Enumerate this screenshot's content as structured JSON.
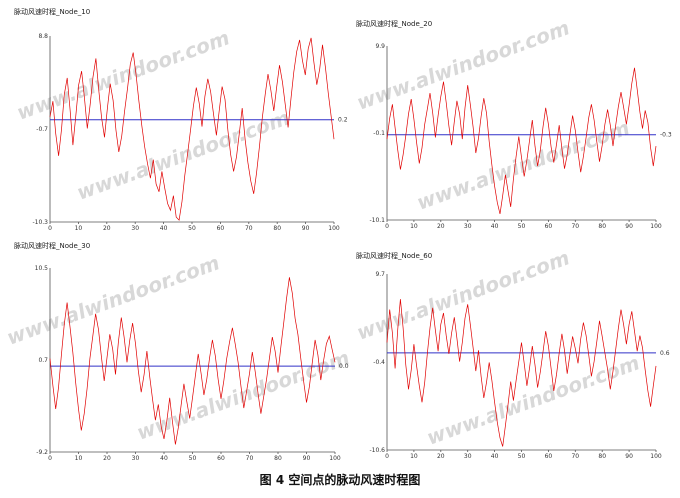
{
  "caption": "图 4 空间点的脉动风速时程图",
  "watermark": "www.alwindoor.com",
  "colors": {
    "series": "#e00000",
    "mean_line": "#3030c8",
    "axis": "#555555"
  },
  "chart_data": [
    {
      "type": "line",
      "title": "脉动风速时程_Node_10",
      "x_ticks": [
        0,
        10,
        20,
        30,
        40,
        50,
        60,
        70,
        80,
        90,
        100
      ],
      "y_tick_labels": [
        "8.8",
        "-0.7",
        "-10.3"
      ],
      "ylim": [
        -10.3,
        8.8
      ],
      "mean_value": 0.2,
      "mean_label": "0.2",
      "series": [
        {
          "values": [
            0.5,
            2.1,
            -1.2,
            -3.5,
            -0.8,
            2.8,
            4.5,
            1.2,
            -2.4,
            0.6,
            3.8,
            5.2,
            2.5,
            -0.7,
            1.8,
            4.6,
            6.5,
            3.2,
            0.4,
            -1.6,
            1.4,
            3.9,
            2.2,
            -0.9,
            -3.1,
            -1.5,
            1.1,
            3.4,
            5.9,
            7.1,
            4.8,
            2.1,
            -0.4,
            -2.6,
            -4.3,
            -5.8,
            -3.9,
            -6.4,
            -7.2,
            -5.1,
            -6.8,
            -8.4,
            -9.1,
            -7.6,
            -9.8,
            -10.1,
            -8.2,
            -5.5,
            -3.2,
            -0.8,
            1.6,
            3.5,
            1.9,
            -0.5,
            2.6,
            4.4,
            3.1,
            0.8,
            -1.4,
            1.2,
            3.6,
            2.3,
            -0.9,
            -3.4,
            -5.1,
            -3.6,
            -1.2,
            1.4,
            -1.8,
            -4.2,
            -6.1,
            -7.4,
            -5.3,
            -2.6,
            0.4,
            2.8,
            4.9,
            3.2,
            1.1,
            3.5,
            5.8,
            4.1,
            1.8,
            -0.6,
            2.4,
            5.1,
            7.2,
            8.4,
            6.3,
            4.8,
            7.5,
            8.6,
            6.1,
            3.8,
            5.4,
            7.9,
            5.6,
            2.9,
            0.6,
            -1.8
          ]
        }
      ]
    },
    {
      "type": "line",
      "title": "脉动风速时程_Node_20",
      "x_ticks": [
        0,
        10,
        20,
        30,
        40,
        50,
        60,
        70,
        80,
        90,
        100
      ],
      "y_tick_labels": [
        "9.9",
        "-0.1",
        "-10.1"
      ],
      "ylim": [
        -10.1,
        9.9
      ],
      "mean_value": -0.3,
      "mean_label": "-0.3",
      "series": [
        {
          "values": [
            -0.8,
            1.6,
            3.2,
            0.5,
            -2.1,
            -4.3,
            -2.6,
            -0.4,
            2.1,
            3.8,
            1.5,
            -1.2,
            -3.6,
            -1.8,
            0.9,
            2.7,
            4.5,
            2.2,
            -0.6,
            1.9,
            4.1,
            5.8,
            3.4,
            0.7,
            -1.5,
            1.2,
            3.6,
            2.1,
            -0.8,
            2.8,
            5.4,
            3.1,
            0.6,
            -2.4,
            -0.7,
            1.8,
            3.9,
            2.2,
            -1.1,
            -3.8,
            -6.2,
            -8.1,
            -9.4,
            -7.3,
            -4.9,
            -6.8,
            -8.6,
            -5.4,
            -2.8,
            -0.5,
            -2.9,
            -5.1,
            -3.2,
            -0.9,
            1.4,
            -1.6,
            -3.9,
            -2.1,
            0.6,
            2.8,
            0.9,
            -1.7,
            -3.5,
            -1.4,
            0.8,
            -1.9,
            -4.2,
            -2.6,
            -0.3,
            1.9,
            0.2,
            -2.3,
            -4.6,
            -2.8,
            -0.6,
            1.7,
            3.2,
            1.4,
            -1.1,
            -3.4,
            -1.5,
            0.9,
            2.6,
            0.8,
            -1.6,
            0.7,
            2.9,
            4.6,
            2.8,
            0.9,
            3.1,
            5.6,
            7.4,
            4.9,
            2.3,
            0.4,
            2.5,
            1.1,
            -1.8,
            -3.9,
            -1.6
          ]
        }
      ]
    },
    {
      "type": "line",
      "title": "脉动风速时程_Node_30",
      "x_ticks": [
        0,
        10,
        20,
        30,
        40,
        50,
        60,
        70,
        80,
        90,
        100
      ],
      "y_tick_labels": [
        "10.5",
        "0.7",
        "-9.2"
      ],
      "ylim": [
        -9.2,
        10.5
      ],
      "mean_value": 0.0,
      "mean_label": "0.0",
      "series": [
        {
          "values": [
            0.8,
            -2.1,
            -4.6,
            -2.3,
            1.2,
            4.5,
            6.8,
            4.2,
            1.5,
            -1.8,
            -4.6,
            -6.9,
            -5.1,
            -2.4,
            0.8,
            3.2,
            5.6,
            3.9,
            1.1,
            -1.6,
            0.9,
            3.4,
            1.8,
            -0.9,
            2.6,
            5.2,
            3.1,
            0.4,
            2.8,
            4.6,
            2.4,
            -0.5,
            -2.8,
            -0.9,
            1.6,
            -1.2,
            -3.6,
            -5.8,
            -4.1,
            -6.5,
            -7.8,
            -5.9,
            -3.4,
            -6.1,
            -8.4,
            -6.6,
            -4.2,
            -1.9,
            -3.8,
            -5.6,
            -3.4,
            -1.1,
            1.3,
            -0.8,
            -3.1,
            -1.4,
            0.9,
            2.8,
            1.1,
            -1.4,
            -3.5,
            -1.6,
            0.8,
            2.6,
            4.1,
            2.3,
            0.4,
            -2.2,
            -4.5,
            -2.7,
            -0.8,
            1.5,
            -0.6,
            -2.9,
            -5.1,
            -3.2,
            -1.4,
            0.9,
            3.1,
            1.6,
            -0.7,
            2.1,
            4.6,
            7.2,
            9.5,
            7.8,
            5.1,
            3.4,
            0.8,
            -1.6,
            -3.9,
            -2.2,
            0.3,
            2.8,
            1.2,
            -1.5,
            0.6,
            2.4,
            3.2,
            1.8,
            0.4
          ]
        }
      ]
    },
    {
      "type": "line",
      "title": "脉动风速时程_Node_60",
      "x_ticks": [
        0,
        10,
        20,
        30,
        40,
        50,
        60,
        70,
        80,
        90,
        100
      ],
      "y_tick_labels": [
        "9.7",
        "-0.4",
        "-10.6"
      ],
      "ylim": [
        -10.6,
        9.7
      ],
      "mean_value": 0.6,
      "mean_label": "0.6",
      "series": [
        {
          "values": [
            1.8,
            5.6,
            2.9,
            -1.2,
            3.4,
            6.8,
            3.5,
            -0.8,
            -3.6,
            -1.4,
            1.6,
            -0.9,
            -3.2,
            -5.1,
            -2.8,
            0.6,
            3.5,
            5.8,
            3.2,
            0.8,
            3.9,
            5.2,
            2.6,
            0.5,
            2.9,
            4.7,
            2.3,
            -0.4,
            1.8,
            4.6,
            6.2,
            3.8,
            1.2,
            -1.5,
            0.9,
            -2.1,
            -4.6,
            -2.8,
            -0.5,
            -2.6,
            -5.1,
            -7.4,
            -9.2,
            -10.2,
            -7.8,
            -5.3,
            -2.7,
            -4.9,
            -2.6,
            -0.4,
            1.8,
            -0.6,
            -3.2,
            -1.1,
            1.4,
            -0.8,
            -3.4,
            -1.6,
            0.7,
            3.1,
            1.4,
            -1.2,
            -3.8,
            -1.9,
            0.6,
            2.8,
            0.9,
            -1.8,
            0.4,
            2.5,
            1.1,
            -0.6,
            2.2,
            4.1,
            2.6,
            0.3,
            -2.1,
            -0.4,
            1.9,
            4.3,
            2.5,
            0.6,
            -1.3,
            -3.6,
            -1.5,
            0.9,
            3.4,
            5.6,
            3.8,
            1.6,
            3.9,
            5.4,
            3.1,
            0.8,
            2.6,
            1.2,
            -1.4,
            -3.8,
            -5.6,
            -3.2,
            -0.9
          ]
        }
      ]
    }
  ]
}
